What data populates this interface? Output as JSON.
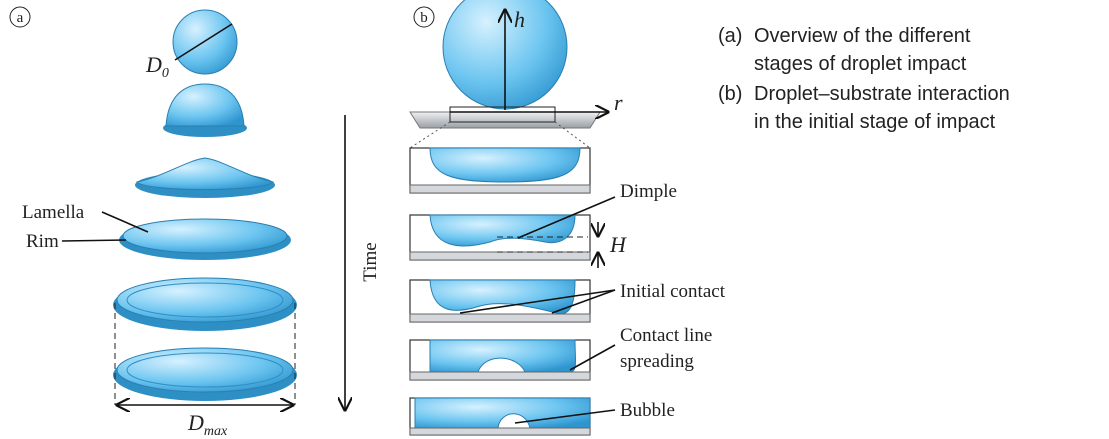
{
  "panel_a": {
    "marker": "a",
    "initial_diameter": {
      "symbol": "D",
      "subscript": "0"
    },
    "lamella": "Lamella",
    "rim": "Rim",
    "max_diameter": {
      "symbol": "D",
      "subscript": "max"
    },
    "time_axis": "Time"
  },
  "panel_b": {
    "marker": "b",
    "height_axis": "h",
    "radial_axis": "r",
    "gap_height": "H",
    "labels": {
      "dimple": "Dimple",
      "initial_contact": "Initial  contact",
      "contact_line_spreading": [
        "Contact line",
        "spreading"
      ],
      "bubble": "Bubble"
    }
  },
  "caption": [
    {
      "label": "(a)",
      "lines": [
        "Overview of the different",
        "stages of droplet impact"
      ]
    },
    {
      "label": "(b)",
      "lines": [
        "Droplet–substrate interaction",
        "in the initial stage of impact"
      ]
    }
  ]
}
